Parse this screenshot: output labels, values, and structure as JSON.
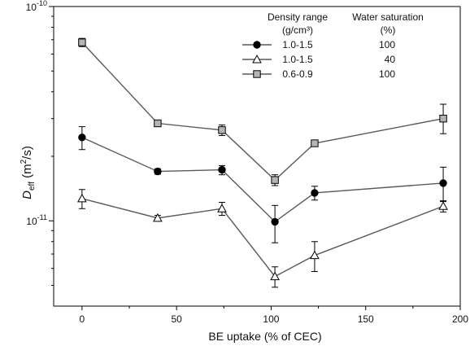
{
  "chart_data": {
    "type": "scatter",
    "title": "",
    "xlabel": "BE uptake (% of CEC)",
    "ylabel_main": "D",
    "ylabel_sub": "eff",
    "ylabel_unit": " (m",
    "ylabel_sup": "2",
    "ylabel_end": "/s)",
    "xlim": [
      -15,
      200
    ],
    "ylim": [
      4e-12,
      1e-10
    ],
    "yscale": "log",
    "x_ticks": [
      0,
      50,
      100,
      150,
      200
    ],
    "x_tick_labels": [
      "0",
      "50",
      "100",
      "150",
      "200"
    ],
    "y_ticks": [
      1e-10,
      1e-11
    ],
    "y_tick_labels": [
      {
        "base": "10",
        "exp": "-10"
      },
      {
        "base": "10",
        "exp": "-11"
      }
    ],
    "legend": {
      "placement": "top-right",
      "header1": "Density range",
      "header1b": "(g/cm³)",
      "header2": "Water saturation",
      "header2b": "(%)",
      "rows": [
        {
          "density": "1.0-1.5",
          "saturation": "100"
        },
        {
          "density": "1.0-1.5",
          "saturation": "40"
        },
        {
          "density": "0.6-0.9",
          "saturation": "100"
        }
      ]
    },
    "series": [
      {
        "marker": "circle-filled",
        "x": [
          0,
          40,
          74,
          102,
          123,
          191
        ],
        "y": [
          2.45e-11,
          1.7e-11,
          1.73e-11,
          9.9e-12,
          1.35e-11,
          1.5e-11
        ],
        "err_low": [
          2.15e-11,
          1.65e-11,
          1.64e-11,
          7.9e-12,
          1.25e-11,
          1.23e-11
        ],
        "err_high": [
          2.75e-11,
          1.75e-11,
          1.81e-11,
          1.18e-11,
          1.45e-11,
          1.78e-11
        ]
      },
      {
        "marker": "triangle-open",
        "x": [
          0,
          40,
          74,
          102,
          123,
          191
        ],
        "y": [
          1.27e-11,
          1.03e-11,
          1.14e-11,
          5.5e-12,
          6.9e-12,
          1.17e-11
        ],
        "err_low": [
          1.14e-11,
          1e-11,
          1.06e-11,
          4.9e-12,
          5.8e-12,
          1.1e-11
        ],
        "err_high": [
          1.4e-11,
          1.06e-11,
          1.22e-11,
          6.1e-12,
          8e-12,
          1.24e-11
        ]
      },
      {
        "marker": "square-gray",
        "x": [
          0,
          40,
          74,
          102,
          123,
          191
        ],
        "y": [
          6.8e-11,
          2.85e-11,
          2.65e-11,
          1.55e-11,
          2.3e-11,
          3e-11
        ],
        "err_low": [
          6.5e-11,
          2.8e-11,
          2.5e-11,
          1.46e-11,
          2.25e-11,
          2.55e-11
        ],
        "err_high": [
          7.1e-11,
          2.9e-11,
          2.8e-11,
          1.64e-11,
          2.35e-11,
          3.5e-11
        ]
      }
    ],
    "colors": {
      "line": "#5a5a5a",
      "square_fill": "#b4b4b4",
      "marker_stroke": "#000000"
    }
  }
}
